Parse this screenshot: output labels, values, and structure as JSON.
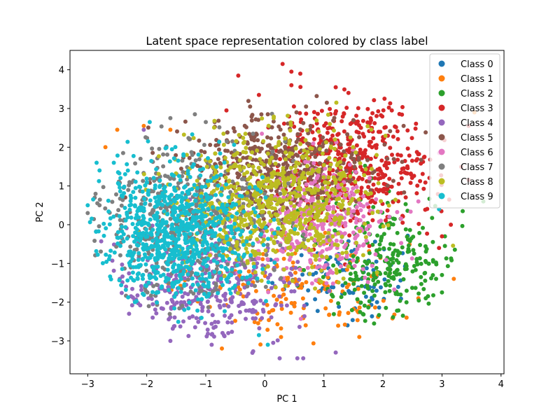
{
  "chart_data": {
    "type": "scatter",
    "title": "Latent space representation colored by class label",
    "xlabel": "PC 1",
    "ylabel": "PC 2",
    "xlim": [
      -3.3,
      4.05
    ],
    "ylim": [
      -3.85,
      4.5
    ],
    "xticks": [
      -3,
      -2,
      -1,
      0,
      1,
      2,
      3,
      4
    ],
    "yticks": [
      -3,
      -2,
      -1,
      0,
      1,
      2,
      3,
      4
    ],
    "grid": false,
    "legend_position": "top-right",
    "marker_size": 6,
    "series": [
      {
        "name": "Class 0",
        "color": "#1f77b4",
        "center": [
          1.3,
          -1.3
        ],
        "spread": [
          0.55,
          0.6
        ],
        "n": 90,
        "points": [
          [
            1.4,
            -2.6
          ],
          [
            1.9,
            -2.0
          ],
          [
            1.7,
            -1.6
          ]
        ]
      },
      {
        "name": "Class 1",
        "color": "#ff7f0e",
        "center": [
          0.6,
          -1.6
        ],
        "spread": [
          0.9,
          0.7
        ],
        "n": 160,
        "points": [
          [
            -2.5,
            2.45
          ],
          [
            -2.05,
            2.55
          ],
          [
            -2.7,
            2.0
          ],
          [
            -1.6,
            2.45
          ],
          [
            3.55,
            2.9
          ],
          [
            1.6,
            -2.9
          ],
          [
            2.4,
            -2.4
          ],
          [
            2.6,
            -1.9
          ],
          [
            3.2,
            -1.4
          ]
        ]
      },
      {
        "name": "Class 2",
        "color": "#2ca02c",
        "center": [
          2.1,
          -0.9
        ],
        "spread": [
          0.6,
          0.8
        ],
        "n": 260,
        "points": [
          [
            3.35,
            0.35
          ],
          [
            3.7,
            0.6
          ],
          [
            3.05,
            -0.3
          ],
          [
            3.05,
            -0.55
          ],
          [
            3.0,
            -1.3
          ],
          [
            3.0,
            -1.75
          ],
          [
            2.9,
            -1.4
          ],
          [
            1.85,
            -2.55
          ],
          [
            2.05,
            -2.15
          ]
        ]
      },
      {
        "name": "Class 3",
        "color": "#d62728",
        "center": [
          1.5,
          1.6
        ],
        "spread": [
          0.7,
          0.8
        ],
        "n": 480,
        "points": [
          [
            0.3,
            4.15
          ],
          [
            0.6,
            3.9
          ],
          [
            0.45,
            3.95
          ],
          [
            -0.45,
            3.85
          ],
          [
            -0.1,
            3.35
          ],
          [
            0.45,
            3.6
          ],
          [
            1.2,
            3.55
          ],
          [
            2.15,
            2.95
          ],
          [
            3.15,
            0.0
          ],
          [
            3.45,
            2.55
          ],
          [
            -0.65,
            2.95
          ],
          [
            3.0,
            -0.3
          ],
          [
            2.95,
            -0.6
          ]
        ]
      },
      {
        "name": "Class 4",
        "color": "#9467bd",
        "center": [
          -1.0,
          -1.7
        ],
        "spread": [
          0.8,
          0.75
        ],
        "n": 360,
        "points": [
          [
            0.25,
            -3.45
          ],
          [
            0.55,
            -3.45
          ],
          [
            0.65,
            -3.45
          ],
          [
            1.2,
            -3.3
          ],
          [
            -1.6,
            -3.0
          ],
          [
            -0.9,
            -3.1
          ],
          [
            -2.35,
            -1.6
          ],
          [
            -2.3,
            -2.3
          ],
          [
            -1.9,
            -2.4
          ],
          [
            -2.05,
            2.45
          ]
        ]
      },
      {
        "name": "Class 5",
        "color": "#8c564b",
        "center": [
          0.2,
          1.4
        ],
        "spread": [
          0.8,
          0.7
        ],
        "n": 480,
        "points": [
          [
            -0.25,
            3.05
          ],
          [
            -0.85,
            2.65
          ],
          [
            0.05,
            2.85
          ],
          [
            1.05,
            3.15
          ],
          [
            1.5,
            2.7
          ],
          [
            2.35,
            2.55
          ]
        ]
      },
      {
        "name": "Class 6",
        "color": "#e377c2",
        "center": [
          0.9,
          0.0
        ],
        "spread": [
          0.6,
          0.75
        ],
        "n": 360,
        "points": [
          [
            2.95,
            1.85
          ],
          [
            -0.05,
            2.35
          ],
          [
            2.6,
            0.6
          ]
        ]
      },
      {
        "name": "Class 7",
        "color": "#7f7f7f",
        "center": [
          -1.3,
          0.1
        ],
        "spread": [
          0.75,
          1.0
        ],
        "n": 520,
        "points": [
          [
            -3.0,
            0.3
          ],
          [
            -1.6,
            2.75
          ],
          [
            -1.0,
            2.65
          ],
          [
            -0.2,
            2.35
          ],
          [
            -2.4,
            1.85
          ],
          [
            -2.8,
            0.5
          ]
        ]
      },
      {
        "name": "Class 8",
        "color": "#bcbd22",
        "center": [
          0.2,
          0.6
        ],
        "spread": [
          0.8,
          0.85
        ],
        "n": 720,
        "points": [
          [
            -0.7,
            2.35
          ],
          [
            0.15,
            2.75
          ],
          [
            1.45,
            2.25
          ],
          [
            1.1,
            2.6
          ],
          [
            0.85,
            -1.65
          ]
        ]
      },
      {
        "name": "Class 9",
        "color": "#17becf",
        "center": [
          -1.5,
          -0.2
        ],
        "spread": [
          0.65,
          0.85
        ],
        "n": 820,
        "points": [
          [
            -2.8,
            1.4
          ],
          [
            -2.85,
            1.6
          ],
          [
            -3.0,
            0.5
          ],
          [
            -1.95,
            2.65
          ],
          [
            -2.2,
            -2.0
          ],
          [
            -0.1,
            -2.85
          ],
          [
            0.05,
            -3.1
          ],
          [
            2.95,
            0.4
          ]
        ]
      }
    ]
  }
}
